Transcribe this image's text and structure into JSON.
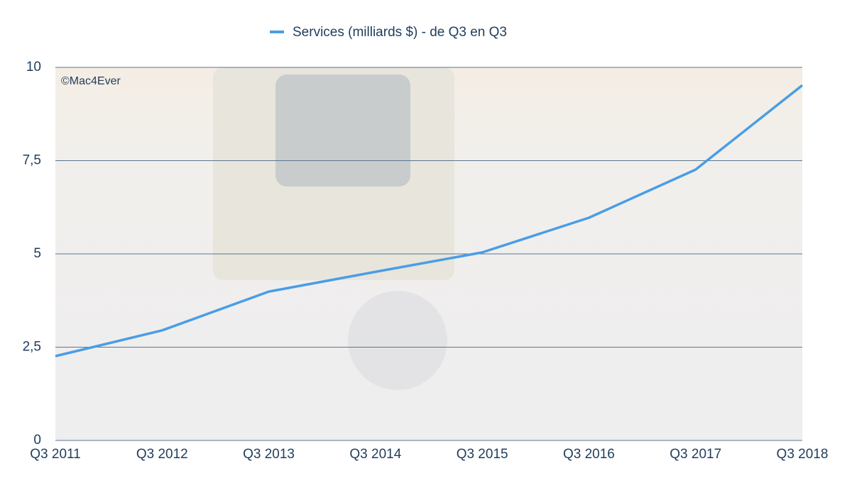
{
  "chart_data": {
    "type": "line",
    "legend_label": "Services (milliards $) - de Q3 en Q3",
    "annotation": "©Mac4Ever",
    "categories": [
      "Q3 2011",
      "Q3 2012",
      "Q3 2013",
      "Q3 2014",
      "Q3 2015",
      "Q3 2016",
      "Q3 2017",
      "Q3 2018"
    ],
    "series": [
      {
        "name": "Services (milliards $) - de Q3 en Q3",
        "color": "#4a9de5",
        "values": [
          2.26,
          2.95,
          3.99,
          4.52,
          5.04,
          5.97,
          7.26,
          9.52
        ]
      }
    ],
    "ylim": [
      0,
      10
    ],
    "yticks": [
      0,
      {
        "value": 2.5,
        "label": "2,5"
      },
      5,
      {
        "value": 7.5,
        "label": "7,5"
      },
      10
    ],
    "grid": true
  }
}
